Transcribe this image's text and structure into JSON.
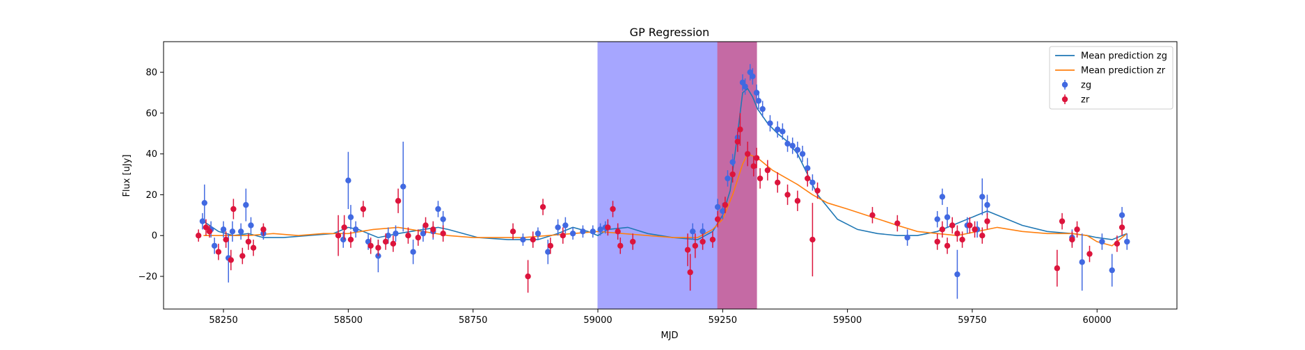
{
  "chart_data": {
    "type": "scatter",
    "title": "GP Regression",
    "xlabel": "MJD",
    "ylabel": "Flux [uJy]",
    "xlim": [
      58130,
      60160
    ],
    "ylim": [
      -36,
      95
    ],
    "xticks": [
      58250,
      58500,
      58750,
      59000,
      59250,
      59500,
      59750,
      60000
    ],
    "yticks": [
      -20,
      0,
      20,
      40,
      60,
      80
    ],
    "grid": false,
    "legend_position": "top-right",
    "shaded_regions": [
      {
        "x0": 59000,
        "x1": 59240,
        "color": "#a6a6ff"
      },
      {
        "x0": 59240,
        "x1": 59318,
        "color": "#c56aa4"
      }
    ],
    "series": [
      {
        "name": "Mean prediction zg",
        "kind": "line",
        "color": "#1f77b4",
        "x": [
          58210,
          58240,
          58270,
          58300,
          58330,
          58370,
          58420,
          58470,
          58500,
          58520,
          58560,
          58600,
          58650,
          58680,
          58700,
          58760,
          58820,
          58880,
          58920,
          58950,
          58980,
          59000,
          59020,
          59060,
          59100,
          59150,
          59200,
          59230,
          59250,
          59265,
          59280,
          59290,
          59300,
          59310,
          59320,
          59340,
          59360,
          59380,
          59400,
          59420,
          59440,
          59480,
          59520,
          59560,
          59600,
          59640,
          59680,
          59720,
          59760,
          59780,
          59800,
          59850,
          59900,
          59950,
          59980,
          60000,
          60030,
          60060
        ],
        "y": [
          7,
          2,
          0,
          1,
          -1,
          -1,
          0,
          1,
          4,
          3,
          -1,
          1,
          3,
          4,
          3,
          -1,
          -2,
          -2,
          1,
          4,
          2,
          0,
          3,
          4,
          1,
          -1,
          -2,
          2,
          10,
          22,
          50,
          70,
          72,
          68,
          62,
          55,
          50,
          46,
          40,
          30,
          20,
          8,
          3,
          1,
          0,
          0,
          2,
          6,
          10,
          12,
          10,
          5,
          2,
          1,
          0,
          -1,
          -2,
          1
        ]
      },
      {
        "name": "Mean prediction zr",
        "kind": "line",
        "color": "#ff7f0e",
        "x": [
          58210,
          58260,
          58300,
          58350,
          58400,
          58450,
          58500,
          58550,
          58600,
          58650,
          58700,
          58750,
          58800,
          58850,
          58900,
          58950,
          59000,
          59050,
          59100,
          59150,
          59200,
          59230,
          59250,
          59270,
          59290,
          59300,
          59320,
          59350,
          59400,
          59430,
          59460,
          59500,
          59550,
          59600,
          59640,
          59680,
          59720,
          59760,
          59800,
          59850,
          59900,
          59950,
          59980,
          60000,
          60030,
          60060
        ],
        "y": [
          0,
          0,
          0,
          1,
          0,
          1,
          1,
          3,
          4,
          2,
          0,
          -1,
          -1,
          -1,
          0,
          1,
          2,
          1,
          0,
          -1,
          -1,
          3,
          8,
          20,
          35,
          40,
          38,
          32,
          25,
          20,
          16,
          13,
          9,
          5,
          2,
          1,
          0,
          2,
          4,
          2,
          1,
          1,
          0,
          -3,
          -5,
          1
        ]
      },
      {
        "name": "zg",
        "kind": "errorbar",
        "color": "#4169e1",
        "x": [
          58208,
          58212,
          58225,
          58232,
          58250,
          58260,
          58268,
          58285,
          58295,
          58305,
          58330,
          58490,
          58500,
          58505,
          58515,
          58540,
          58560,
          58580,
          58595,
          58610,
          58630,
          58650,
          58670,
          58680,
          58690,
          58850,
          58880,
          58900,
          58920,
          58935,
          58950,
          58970,
          58990,
          59005,
          59015,
          59190,
          59210,
          59240,
          59250,
          59260,
          59270,
          59280,
          59290,
          59295,
          59305,
          59310,
          59318,
          59322,
          59330,
          59345,
          59360,
          59370,
          59380,
          59390,
          59400,
          59410,
          59420,
          59430,
          59620,
          59680,
          59690,
          59700,
          59720,
          59740,
          59760,
          59770,
          59780,
          59950,
          59970,
          60010,
          60030,
          60050,
          60060
        ],
        "y": [
          7,
          16,
          3,
          -5,
          3,
          -11,
          2,
          2,
          15,
          5,
          1,
          -2,
          27,
          9,
          3,
          -3,
          -10,
          0,
          1,
          24,
          -8,
          1,
          2,
          13,
          8,
          -2,
          1,
          -8,
          4,
          5,
          1,
          2,
          2,
          3,
          4,
          2,
          2,
          14,
          12,
          28,
          36,
          48,
          75,
          73,
          80,
          78,
          70,
          66,
          62,
          55,
          52,
          51,
          45,
          44,
          42,
          40,
          33,
          26,
          -1,
          8,
          19,
          9,
          -19,
          5,
          3,
          19,
          15,
          -1,
          -13,
          -3,
          -17,
          10,
          -3
        ],
        "yerr": [
          4,
          9,
          4,
          4,
          4,
          12,
          5,
          4,
          8,
          4,
          3,
          4,
          14,
          6,
          4,
          4,
          8,
          4,
          4,
          22,
          6,
          4,
          4,
          4,
          4,
          3,
          3,
          6,
          4,
          4,
          3,
          3,
          3,
          3,
          3,
          4,
          4,
          4,
          4,
          4,
          4,
          4,
          4,
          4,
          4,
          4,
          4,
          4,
          4,
          4,
          4,
          4,
          4,
          4,
          4,
          4,
          5,
          4,
          4,
          4,
          4,
          5,
          12,
          4,
          4,
          9,
          5,
          4,
          14,
          4,
          8,
          4,
          4
        ]
      },
      {
        "name": "zr",
        "kind": "errorbar",
        "color": "#dc143c",
        "x": [
          58200,
          58215,
          58222,
          58240,
          58255,
          58265,
          58270,
          58288,
          58300,
          58310,
          58330,
          58480,
          58492,
          58505,
          58530,
          58545,
          58560,
          58575,
          58590,
          58600,
          58620,
          58640,
          58655,
          58670,
          58690,
          58830,
          58860,
          58870,
          58890,
          58905,
          58930,
          59020,
          59030,
          59040,
          59045,
          59070,
          59180,
          59185,
          59195,
          59210,
          59230,
          59240,
          59255,
          59270,
          59280,
          59285,
          59300,
          59312,
          59318,
          59325,
          59340,
          59360,
          59380,
          59400,
          59420,
          59430,
          59440,
          59550,
          59600,
          59680,
          59690,
          59700,
          59710,
          59720,
          59730,
          59745,
          59755,
          59770,
          59780,
          59920,
          59930,
          59950,
          59960,
          59985,
          60040,
          60050
        ],
        "y": [
          0,
          4,
          2,
          -8,
          -2,
          -12,
          13,
          -10,
          -3,
          -6,
          3,
          0,
          4,
          -2,
          13,
          -5,
          -6,
          -3,
          -4,
          17,
          0,
          -1,
          5,
          3,
          1,
          2,
          -20,
          -2,
          14,
          -5,
          0,
          4,
          13,
          2,
          -5,
          -3,
          -7,
          -18,
          -5,
          -3,
          -2,
          8,
          15,
          30,
          46,
          52,
          40,
          34,
          38,
          28,
          32,
          26,
          20,
          17,
          28,
          -2,
          22,
          10,
          6,
          -3,
          3,
          -5,
          5,
          1,
          -2,
          5,
          3,
          0,
          7,
          -16,
          7,
          -2,
          3,
          -9,
          -4,
          4
        ],
        "yerr": [
          3,
          4,
          3,
          4,
          4,
          5,
          5,
          4,
          4,
          4,
          3,
          10,
          6,
          4,
          4,
          4,
          4,
          4,
          4,
          6,
          4,
          4,
          4,
          4,
          4,
          4,
          8,
          4,
          4,
          4,
          4,
          4,
          4,
          4,
          4,
          4,
          8,
          9,
          6,
          4,
          4,
          4,
          4,
          4,
          5,
          8,
          6,
          5,
          5,
          5,
          5,
          5,
          5,
          5,
          4,
          18,
          4,
          4,
          4,
          4,
          4,
          4,
          4,
          4,
          4,
          4,
          4,
          4,
          4,
          9,
          4,
          4,
          4,
          4,
          4,
          4
        ]
      }
    ]
  }
}
